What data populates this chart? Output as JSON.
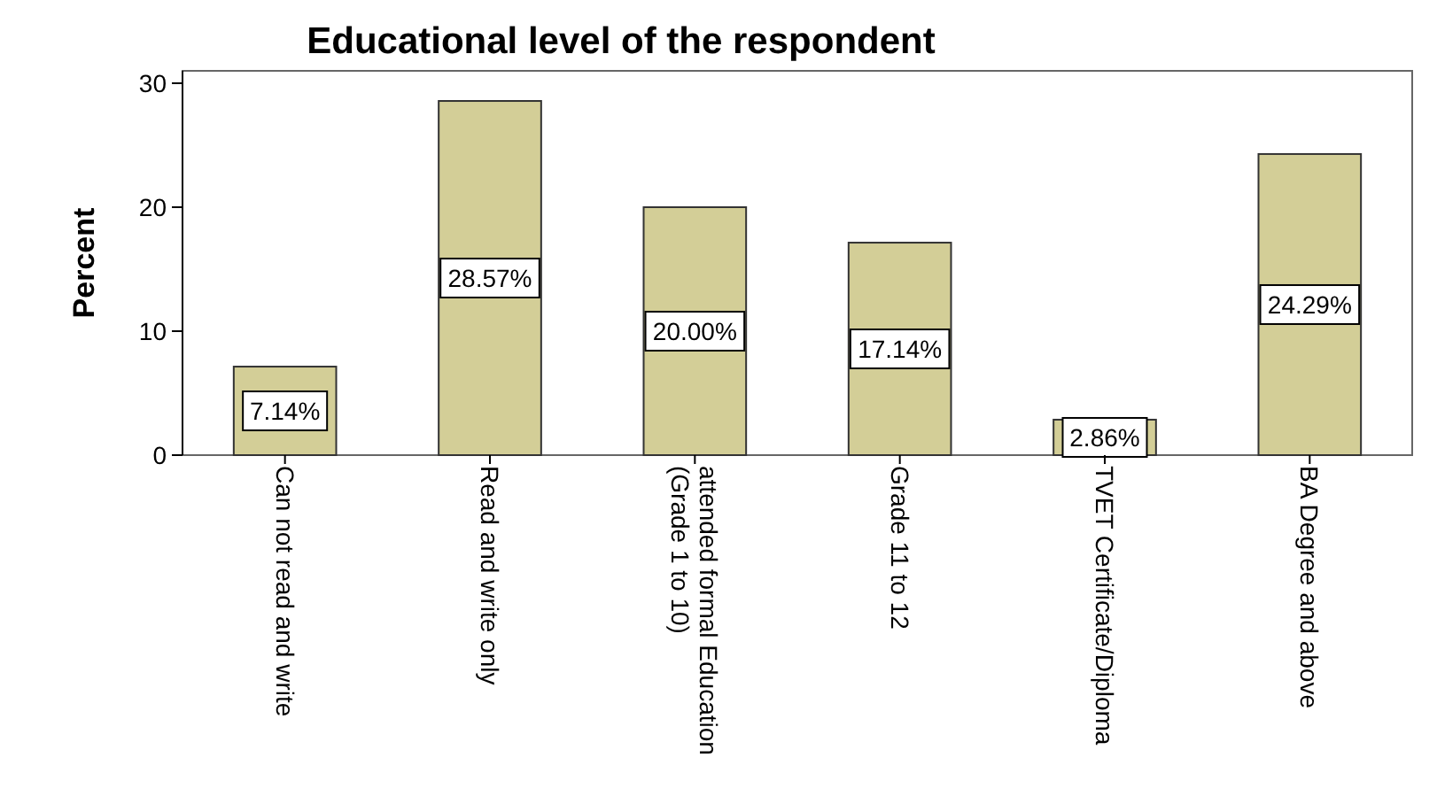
{
  "chart_data": {
    "type": "bar",
    "title": "Educational level of the respondent",
    "ylabel": "Percent",
    "categories": [
      "Can not read and write",
      "Read and write only",
      "attended formal Education (Grade 1 to 10)",
      "Grade 11 to 12",
      "TVET Certificate/Diploma",
      "BA Degree and above"
    ],
    "values": [
      7.14,
      28.57,
      20.0,
      17.14,
      2.86,
      24.29
    ],
    "value_labels": [
      "7.14%",
      "28.57%",
      "20.00%",
      "17.14%",
      "2.86%",
      "24.29%"
    ],
    "color": "#d3ce97",
    "ylim": [
      0,
      31
    ],
    "yticks": [
      0,
      10,
      20,
      30
    ]
  }
}
